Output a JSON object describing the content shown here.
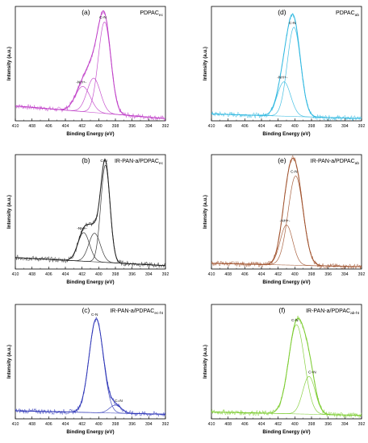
{
  "figure": {
    "panels": [
      {
        "id": "a",
        "letter": "(a)",
        "title": "PDPAC",
        "sub": "ec",
        "ylabel": "Intensity (a.u.)",
        "xlabel": "Binding Energy (eV)",
        "color": "#c040c8"
      },
      {
        "id": "d",
        "letter": "(d)",
        "title": "PDPAC",
        "sub": "ab",
        "ylabel": "Intensity (a.u.)",
        "xlabel": "Binding Energy (eV)",
        "color": "#30b8e0"
      },
      {
        "id": "b",
        "letter": "(b)",
        "title": "IR-PAN-a/PDPAC",
        "sub": "ec",
        "ylabel": "Intensity (a.u.)",
        "xlabel": "Binding Energy (eV)",
        "color": "#222222"
      },
      {
        "id": "e",
        "letter": "(e)",
        "title": "IR-PAN-a/PDPAC",
        "sub": "ab",
        "ylabel": "Intensity (a.u.)",
        "xlabel": "Binding Energy (eV)",
        "color": "#a0522d"
      },
      {
        "id": "c",
        "letter": "(c)",
        "title": "IR-PAN-a/PDPAC",
        "sub": "ec-ht",
        "ylabel": "Intensity (a.u.)",
        "xlabel": "Binding Energy (eV)",
        "color": "#3038b8"
      },
      {
        "id": "f",
        "letter": "(f)",
        "title": "IR-PAN-a/PDPAC",
        "sub": "ab-ht",
        "ylabel": "Intensity (a.u.)",
        "xlabel": "Binding Energy (eV)",
        "color": "#7ccc30"
      }
    ]
  },
  "chart_data": [
    {
      "type": "line",
      "panel": "a",
      "x_range": [
        410,
        392
      ],
      "x_reversed": true,
      "xticks": [
        410,
        408,
        406,
        404,
        402,
        400,
        398,
        396,
        394,
        392
      ],
      "peaks": [
        {
          "label": "-NH+-",
          "center": 401.9,
          "height": 0.22,
          "width": 0.9
        },
        {
          "label": "C-N",
          "center": 399.3,
          "height": 0.8,
          "width": 0.75
        },
        {
          "label": "",
          "center": 400.6,
          "height": 0.3,
          "width": 0.8
        }
      ],
      "baseline": {
        "left": 0.13,
        "right": 0.02
      }
    },
    {
      "type": "line",
      "panel": "d",
      "x_range": [
        410,
        392
      ],
      "x_reversed": true,
      "xticks": [
        410,
        408,
        406,
        404,
        402,
        400,
        398,
        396,
        394,
        392
      ],
      "peaks": [
        {
          "label": "-NH+-",
          "center": 401.3,
          "height": 0.3,
          "width": 0.8
        },
        {
          "label": "C-N",
          "center": 400.1,
          "height": 0.78,
          "width": 0.8
        }
      ],
      "baseline": {
        "left": 0.06,
        "right": 0.02
      }
    },
    {
      "type": "line",
      "panel": "b",
      "x_range": [
        410,
        392
      ],
      "x_reversed": true,
      "xticks": [
        410,
        408,
        406,
        404,
        402,
        400,
        398,
        396,
        394,
        392
      ],
      "peaks": [
        {
          "label": "-NH+-",
          "center": 401.8,
          "height": 0.25,
          "width": 0.7
        },
        {
          "label": "",
          "center": 400.5,
          "height": 0.25,
          "width": 0.7
        },
        {
          "label": "C-N",
          "center": 399.2,
          "height": 0.85,
          "width": 0.55
        }
      ],
      "baseline": {
        "left": 0.1,
        "right": 0.03
      }
    },
    {
      "type": "line",
      "panel": "e",
      "x_range": [
        410,
        392
      ],
      "x_reversed": true,
      "xticks": [
        410,
        408,
        406,
        404,
        402,
        400,
        398,
        396,
        394,
        392
      ],
      "peaks": [
        {
          "label": "-NH+-",
          "center": 401.0,
          "height": 0.35,
          "width": 0.75
        },
        {
          "label": "C-N",
          "center": 399.9,
          "height": 0.78,
          "width": 0.9
        }
      ],
      "baseline": {
        "left": 0.05,
        "right": 0.02
      }
    },
    {
      "type": "line",
      "panel": "c",
      "x_range": [
        410,
        392
      ],
      "x_reversed": true,
      "xticks": [
        410,
        408,
        406,
        404,
        402,
        400,
        398,
        396,
        394,
        392
      ],
      "peaks": [
        {
          "label": "C-N",
          "center": 400.3,
          "height": 0.82,
          "width": 0.85
        },
        {
          "label": "C=N",
          "center": 398.0,
          "height": 0.07,
          "width": 0.7
        }
      ],
      "baseline": {
        "left": 0.07,
        "right": 0.04
      }
    },
    {
      "type": "line",
      "panel": "f",
      "x_range": [
        410,
        392
      ],
      "x_reversed": true,
      "xticks": [
        410,
        408,
        406,
        404,
        402,
        400,
        398,
        396,
        394,
        392
      ],
      "peaks": [
        {
          "label": "C-N",
          "center": 399.8,
          "height": 0.78,
          "width": 0.95
        },
        {
          "label": "C=N",
          "center": 398.3,
          "height": 0.33,
          "width": 0.75
        }
      ],
      "baseline": {
        "left": 0.06,
        "right": 0.03
      }
    }
  ]
}
